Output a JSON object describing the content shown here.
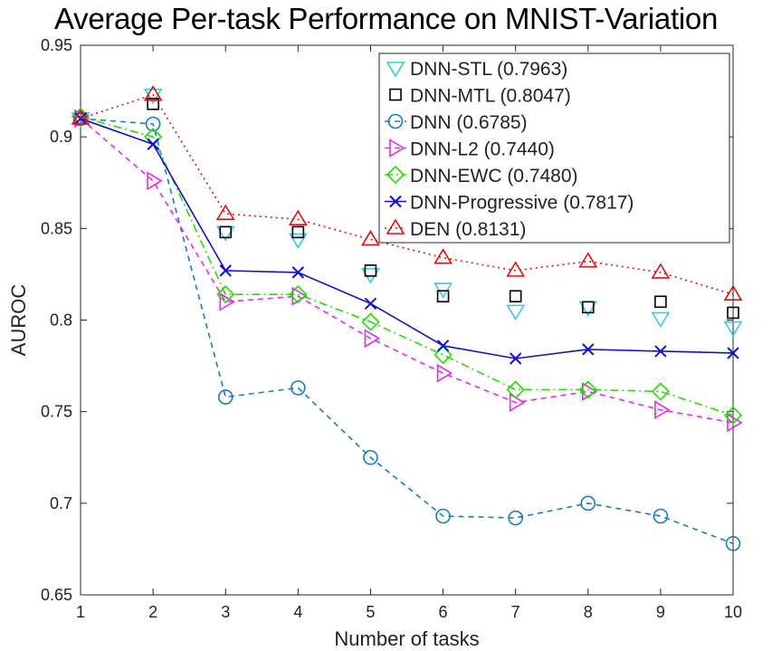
{
  "chart_data": {
    "type": "line",
    "title": "Average Per-task Performance on MNIST-Variation",
    "xlabel": "Number of tasks",
    "ylabel": "AUROC",
    "xlim": [
      1,
      10
    ],
    "ylim": [
      0.65,
      0.95
    ],
    "x": [
      1,
      2,
      3,
      4,
      5,
      6,
      7,
      8,
      9,
      10
    ],
    "xticks": [
      1,
      2,
      3,
      4,
      5,
      6,
      7,
      8,
      9,
      10
    ],
    "yticks": [
      0.65,
      0.7,
      0.75,
      0.8,
      0.85,
      0.9,
      0.95
    ],
    "ytick_labels": [
      "0.65",
      "0.7",
      "0.75",
      "0.8",
      "0.85",
      "0.9",
      "0.95"
    ],
    "grid": false,
    "legend_position": "top-right",
    "series": [
      {
        "name": "DNN-STL (0.7963)",
        "marker": "triangle-down",
        "line": "none",
        "color": "#33ccdd",
        "values": [
          0.91,
          0.923,
          0.848,
          0.844,
          0.825,
          0.817,
          0.805,
          0.807,
          0.801,
          0.796
        ]
      },
      {
        "name": "DNN-MTL (0.8047)",
        "marker": "square",
        "line": "none",
        "color": "#000000",
        "values": [
          0.91,
          0.918,
          0.848,
          0.848,
          0.827,
          0.813,
          0.813,
          0.807,
          0.81,
          0.804
        ]
      },
      {
        "name": "DNN (0.6785)",
        "marker": "circle",
        "line": "dashed",
        "color": "#1a7abf",
        "values": [
          0.91,
          0.907,
          0.758,
          0.763,
          0.725,
          0.693,
          0.692,
          0.7,
          0.693,
          0.678
        ]
      },
      {
        "name": "DNN-L2 (0.7440)",
        "marker": "triangle-right",
        "line": "dashed",
        "color": "#ee22ee",
        "values": [
          0.91,
          0.876,
          0.81,
          0.813,
          0.79,
          0.771,
          0.755,
          0.761,
          0.751,
          0.744
        ]
      },
      {
        "name": "DNN-EWC (0.7480)",
        "marker": "diamond",
        "line": "dashdot",
        "color": "#22dd00",
        "values": [
          0.911,
          0.9,
          0.814,
          0.814,
          0.799,
          0.781,
          0.762,
          0.762,
          0.761,
          0.748
        ]
      },
      {
        "name": "DNN-Progressive (0.7817)",
        "marker": "x",
        "line": "solid",
        "color": "#1010cc",
        "values": [
          0.91,
          0.896,
          0.827,
          0.826,
          0.809,
          0.786,
          0.779,
          0.784,
          0.783,
          0.782
        ]
      },
      {
        "name": "DEN (0.8131)",
        "marker": "triangle-up",
        "line": "dotted",
        "color": "#dd1111",
        "values": [
          0.91,
          0.923,
          0.858,
          0.855,
          0.844,
          0.834,
          0.827,
          0.832,
          0.826,
          0.814
        ]
      }
    ]
  }
}
